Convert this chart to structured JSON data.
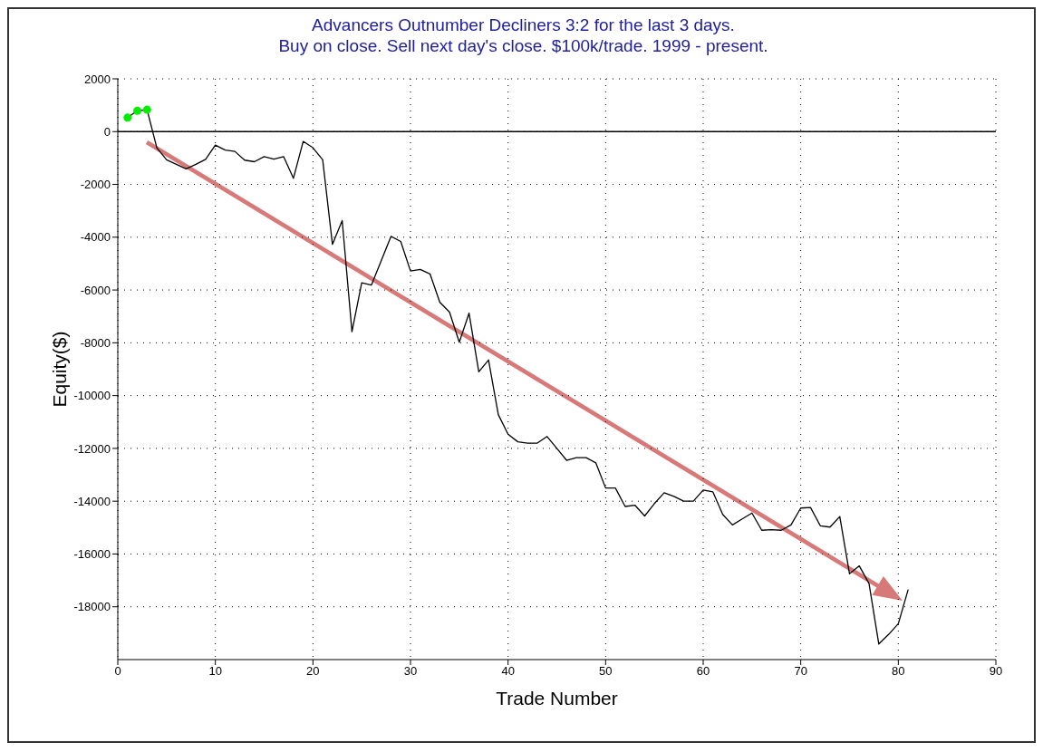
{
  "chart_data": {
    "type": "line",
    "title": "Advancers Outnumber Decliners 3:2 for the last 3 days.",
    "subtitle": "Buy on close. Sell next day's close. $100k/trade. 1999 - present.",
    "xlabel": "Trade Number",
    "ylabel": "Equity($)",
    "x": [
      1,
      2,
      3,
      4,
      5,
      6,
      7,
      8,
      9,
      10,
      11,
      12,
      13,
      14,
      15,
      16,
      17,
      18,
      19,
      20,
      21,
      22,
      23,
      24,
      25,
      26,
      27,
      28,
      29,
      30,
      31,
      32,
      33,
      34,
      35,
      36,
      37,
      38,
      39,
      40,
      41,
      42,
      43,
      44,
      45,
      46,
      47,
      48,
      49,
      50,
      51,
      52,
      53,
      54,
      55,
      56,
      57,
      58,
      59,
      60,
      61,
      62,
      63,
      64,
      65,
      66,
      67,
      68,
      69,
      70,
      71,
      72,
      73,
      74,
      75,
      76,
      77,
      78,
      79,
      80,
      81
    ],
    "series": [
      {
        "color": "#000000",
        "marker": "none",
        "values": [
          530,
          790,
          830,
          -610,
          -1070,
          -1240,
          -1410,
          -1240,
          -1050,
          -510,
          -700,
          -750,
          -1080,
          -1140,
          -950,
          -1040,
          -950,
          -1770,
          -370,
          -610,
          -1070,
          -4270,
          -3370,
          -7580,
          -5730,
          -5810,
          -4890,
          -3970,
          -4160,
          -5280,
          -5220,
          -5390,
          -6460,
          -6840,
          -7980,
          -6880,
          -9100,
          -8650,
          -10720,
          -11460,
          -11750,
          -11800,
          -11800,
          -11550,
          -12000,
          -12450,
          -12350,
          -12350,
          -12550,
          -13500,
          -13500,
          -14200,
          -14150,
          -14560,
          -14090,
          -13680,
          -13820,
          -14000,
          -14000,
          -13580,
          -13650,
          -14500,
          -14900,
          -14670,
          -14450,
          -15100,
          -15080,
          -15100,
          -14900,
          -14260,
          -14240,
          -14930,
          -14980,
          -14580,
          -16750,
          -16450,
          -17120,
          -19410,
          -19050,
          -18640,
          -17360
        ]
      },
      {
        "type": "scatter",
        "color": "#00ee00",
        "marker": "circle",
        "x": [
          1,
          2,
          3
        ],
        "values": [
          530,
          790,
          830
        ]
      }
    ],
    "xlim": [
      0,
      90
    ],
    "xticks": [
      0,
      10,
      20,
      30,
      40,
      50,
      60,
      70,
      80,
      90
    ],
    "ylim": [
      -20000,
      2000
    ],
    "yticks": [
      2000,
      0,
      -2000,
      -4000,
      -6000,
      -8000,
      -10000,
      -12000,
      -14000,
      -16000,
      -18000
    ],
    "grid": true,
    "line_style": "solid",
    "ref_lines": [
      {
        "axis": "y",
        "value": 0,
        "color": "#000000"
      }
    ]
  }
}
